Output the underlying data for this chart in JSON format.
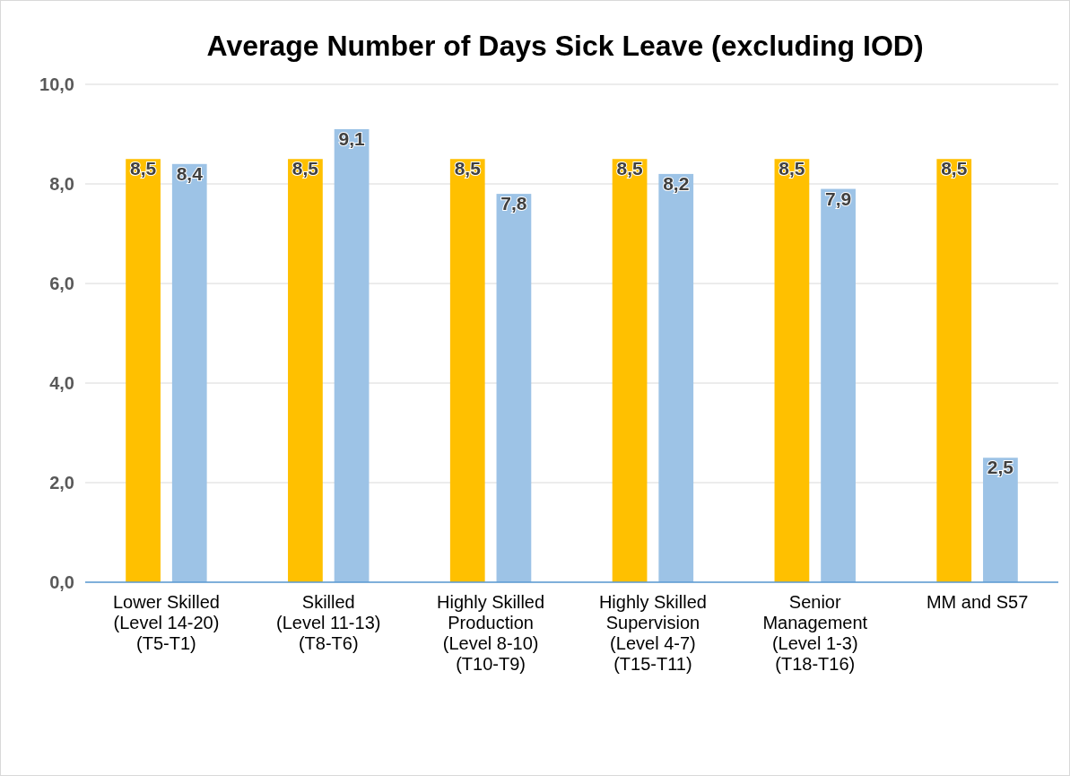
{
  "chart_data": {
    "type": "bar",
    "title": "Average Number of Days Sick Leave (excluding IOD)",
    "categories": [
      "Lower Skilled\n(Level 14-20)\n(T5-T1)",
      "Skilled\n(Level 11-13)\n(T8-T6)",
      "Highly Skilled\nProduction\n(Level 8-10)\n(T10-T9)",
      "Highly Skilled\nSupervision\n(Level 4-7)\n(T15-T11)",
      "Senior\nManagement\n(Level 1-3)\n(T18-T16)",
      "MM and S57"
    ],
    "series": [
      {
        "color": "#ffc000",
        "values": [
          8.5,
          8.5,
          8.5,
          8.5,
          8.5,
          8.5
        ],
        "value_labels": [
          "8,5",
          "8,5",
          "8,5",
          "8,5",
          "8,5",
          "8,5"
        ]
      },
      {
        "color": "#9dc3e6",
        "values": [
          8.4,
          9.1,
          7.8,
          8.2,
          7.9,
          2.5
        ],
        "value_labels": [
          "8,4",
          "9,1",
          "7,8",
          "8,2",
          "7,9",
          "2,5"
        ]
      }
    ],
    "ylim": [
      0,
      10
    ],
    "yticks": [
      {
        "value": 0,
        "label": "0,0"
      },
      {
        "value": 2,
        "label": "2,0"
      },
      {
        "value": 4,
        "label": "4,0"
      },
      {
        "value": 6,
        "label": "6,0"
      },
      {
        "value": 8,
        "label": "8,0"
      },
      {
        "value": 10,
        "label": "10,0"
      }
    ],
    "grid": "y"
  }
}
